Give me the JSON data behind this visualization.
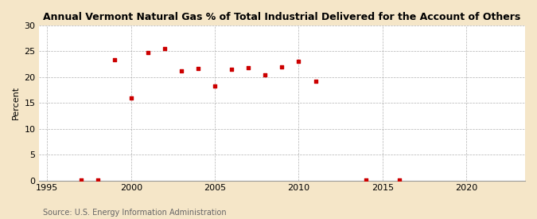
{
  "title": "Annual Vermont Natural Gas % of Total Industrial Delivered for the Account of Others",
  "ylabel": "Percent",
  "source": "Source: U.S. Energy Information Administration",
  "figure_bg": "#f5e6c8",
  "plot_bg": "#ffffff",
  "marker_color": "#cc0000",
  "xlim": [
    1994.5,
    2023.5
  ],
  "ylim": [
    0,
    30
  ],
  "xticks": [
    1995,
    2000,
    2005,
    2010,
    2015,
    2020
  ],
  "yticks": [
    0,
    5,
    10,
    15,
    20,
    25,
    30
  ],
  "data_x": [
    1997,
    1998,
    1999,
    2000,
    2001,
    2002,
    2003,
    2004,
    2005,
    2006,
    2007,
    2008,
    2009,
    2010,
    2011,
    2014,
    2016
  ],
  "data_y": [
    0.05,
    0.05,
    23.3,
    16.0,
    24.7,
    25.5,
    21.2,
    21.7,
    18.3,
    21.5,
    21.8,
    20.5,
    22.0,
    23.0,
    19.2,
    0.05,
    0.05
  ]
}
